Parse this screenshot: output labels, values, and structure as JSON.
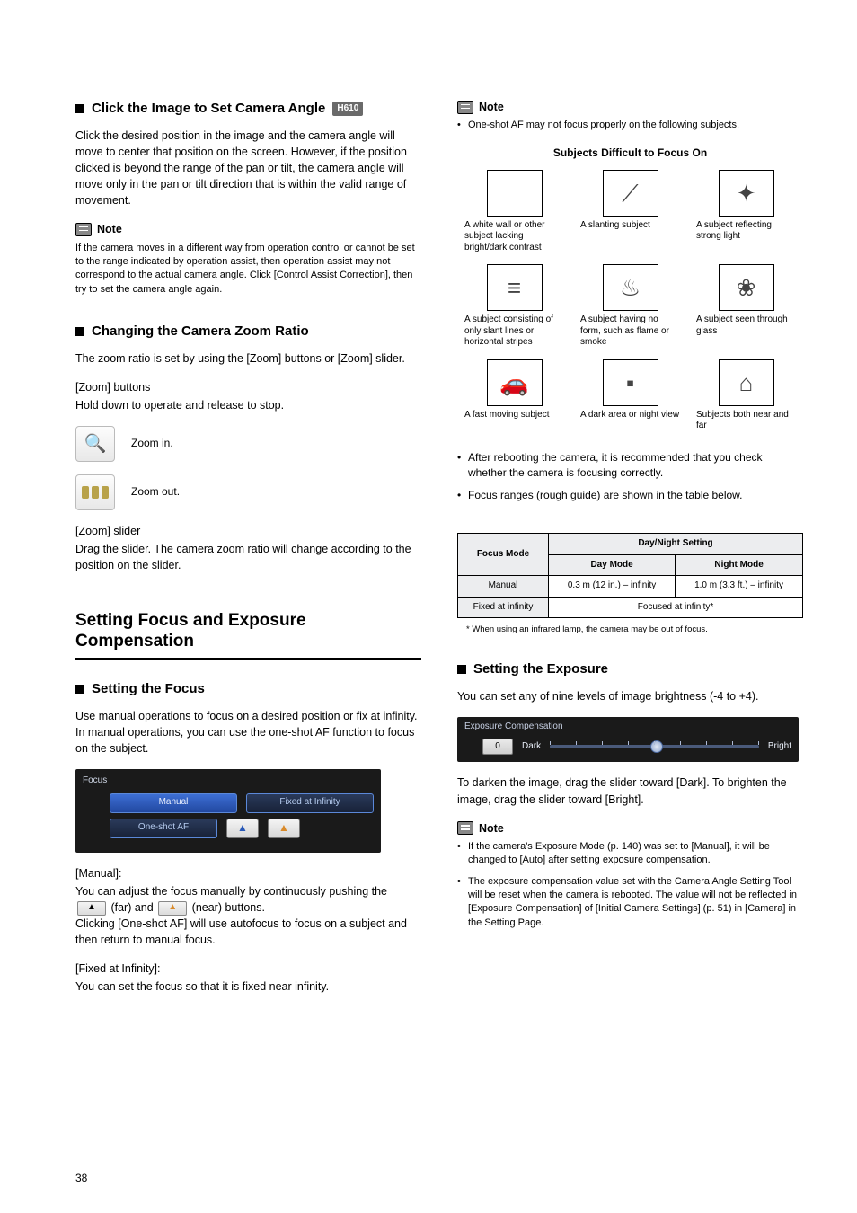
{
  "page_number": "38",
  "left": {
    "section1": {
      "heading": "Click the Image to Set Camera Angle",
      "badge": "H610",
      "para": "Click the desired position in the image and the camera angle will move to center that position on the screen. However, if the position clicked is beyond the range of the pan or tilt, the camera angle will move only in the pan or tilt direction that is within the valid range of movement.",
      "note_label": "Note",
      "note_body": "If the camera moves in a different way from operation control or cannot be set to the range indicated by operation assist, then operation assist may not correspond to the actual camera angle. Click [Control Assist Correction], then try to set the camera angle again."
    },
    "section2": {
      "heading": "Changing the Camera Zoom Ratio",
      "para": "The zoom ratio is set by using the [Zoom] buttons or [Zoom] slider.",
      "buttons_label": "[Zoom] buttons",
      "buttons_body": "Hold down to operate and release to stop.",
      "zoom_in_label": "Zoom in.",
      "zoom_out_label": "Zoom out.",
      "slider_label": "[Zoom] slider",
      "slider_body": "Drag the slider. The camera zoom ratio will change according to the position on the slider."
    },
    "section3": {
      "heading": "Setting Focus and Exposure Compensation",
      "sub_heading": "Setting the Focus",
      "para": "Use manual operations to focus on a desired position or fix at infinity. In manual operations, you can use the one-shot AF function to focus on the subject.",
      "panel_title": "Focus",
      "tab_manual": "Manual",
      "tab_fixed": "Fixed at Infinity",
      "btn_oneshot": "One-shot AF",
      "manual_label": "[Manual]:",
      "manual_body_1": "You can adjust the focus manually by continuously pushing the ",
      "manual_body_far": " (far) and ",
      "manual_body_near": " (near) buttons.",
      "manual_body_2": "Clicking [One-shot AF] will use autofocus to focus on a subject and then return to manual focus.",
      "fixed_label": "[Fixed at Infinity]:",
      "fixed_body": "You can set the focus so that it is fixed near infinity."
    }
  },
  "right": {
    "note_label": "Note",
    "note_bullet1": "One-shot AF may not focus properly on the following subjects.",
    "subjects_title": "Subjects Difficult to Focus On",
    "subjects": [
      {
        "caption": "A white wall or other subject lacking bright/dark contrast",
        "glyph": ""
      },
      {
        "caption": "A slanting subject",
        "glyph": "⟋"
      },
      {
        "caption": "A subject reflecting strong light",
        "glyph": "✦"
      },
      {
        "caption": "A subject consisting of only slant lines or horizontal stripes",
        "glyph": "≡"
      },
      {
        "caption": "A subject having no form, such as flame or smoke",
        "glyph": "♨"
      },
      {
        "caption": "A subject seen through glass",
        "glyph": "❀"
      },
      {
        "caption": "A fast moving subject",
        "glyph": "🚗"
      },
      {
        "caption": "A dark area or night view",
        "glyph": "▪"
      },
      {
        "caption": "Subjects both near and far",
        "glyph": "⌂"
      }
    ],
    "bullet2": "After rebooting the camera, it is recommended that you check whether the camera is focusing correctly.",
    "bullet3": "Focus ranges (rough guide) are shown in the table below.",
    "table": {
      "h_focus_mode": "Focus Mode",
      "h_daynight": "Day/Night Setting",
      "h_day": "Day Mode",
      "h_night": "Night Mode",
      "r1c1": "Manual",
      "r1c2": "0.3 m (12 in.) – infinity",
      "r1c3": "1.0 m (3.3 ft.) – infinity",
      "r2c1": "Fixed at infinity",
      "r2c2": "Focused at infinity*",
      "footnote": "* When using an infrared lamp, the camera may be out of focus."
    },
    "exposure": {
      "heading": "Setting the Exposure",
      "para": "You can set any of nine levels of image brightness (-4 to +4).",
      "panel_title": "Exposure Compensation",
      "value": "0",
      "dark": "Dark",
      "bright": "Bright",
      "para2": "To darken the image, drag the slider toward [Dark]. To brighten the image, drag the slider toward [Bright].",
      "note_label": "Note",
      "n1": "If the camera's Exposure Mode (p. 140) was set to [Manual], it will be changed to [Auto] after setting exposure compensation.",
      "n2": "The exposure compensation value set with the Camera Angle Setting Tool will be reset when the camera is rebooted. The value will not be reflected in [Exposure Compensation] of [Initial Camera Settings] (p. 51) in [Camera] in the Setting Page."
    }
  }
}
